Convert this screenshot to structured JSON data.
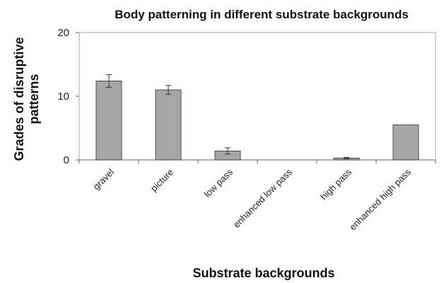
{
  "chart_data": {
    "type": "bar",
    "title": "Body patterning in different substrate backgrounds",
    "xlabel": "Substrate backgrounds",
    "ylabel_lines": [
      "Grades of disruptive",
      "patterns"
    ],
    "ylim": [
      0,
      20
    ],
    "yticks": [
      0,
      10,
      20
    ],
    "grid": false,
    "categories": [
      "gravel",
      "picture",
      "low pass",
      "enhanced low pass",
      "high pass",
      "enhanced high pass"
    ],
    "values": [
      12.4,
      11.0,
      1.4,
      0,
      0.3,
      5.5
    ],
    "errors": [
      1.0,
      0.7,
      0.5,
      0,
      0.1,
      0
    ],
    "colors": {
      "bar": "#a6a6a6",
      "bar_edge": "#333333",
      "frame": "#a8a8a8"
    }
  }
}
